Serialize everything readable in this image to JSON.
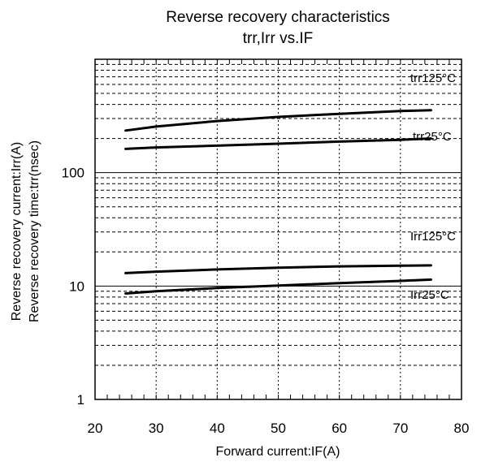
{
  "chart_data": {
    "type": "line",
    "title": "Reverse recovery characteristics",
    "subtitle": "trr,Irr vs.IF",
    "xlabel": "Forward current:IF(A)",
    "ylabel_lines": [
      "Reverse recovery current:Irr(A)",
      "Reverse recovery time:trr(nsec)"
    ],
    "xlim": [
      20,
      80
    ],
    "ylim": [
      1,
      1000
    ],
    "yscale": "log",
    "x_ticks": [
      20,
      30,
      40,
      50,
      60,
      70,
      80
    ],
    "x_tick_labels": [
      "20",
      "30",
      "40",
      "50",
      "60",
      "70",
      "80"
    ],
    "y_tick_values": [
      1,
      10,
      100
    ],
    "y_tick_labels": [
      "1",
      "10",
      "100"
    ],
    "grid": true,
    "series": [
      {
        "name": "trr125°C",
        "x": [
          25,
          30,
          40,
          50,
          60,
          70,
          75
        ],
        "y": [
          235,
          255,
          285,
          310,
          330,
          350,
          355
        ]
      },
      {
        "name": "trr25°C",
        "x": [
          25,
          30,
          40,
          50,
          60,
          70,
          75
        ],
        "y": [
          162,
          167,
          173,
          180,
          188,
          195,
          200
        ]
      },
      {
        "name": "Irr125°C",
        "x": [
          25,
          30,
          40,
          50,
          60,
          70,
          75
        ],
        "y": [
          13.0,
          13.4,
          14.0,
          14.5,
          14.9,
          15.1,
          15.2
        ]
      },
      {
        "name": "Irr25°C",
        "x": [
          25,
          30,
          40,
          50,
          60,
          70,
          75
        ],
        "y": [
          8.6,
          9.0,
          9.6,
          10.1,
          10.6,
          11.1,
          11.4
        ]
      }
    ]
  }
}
